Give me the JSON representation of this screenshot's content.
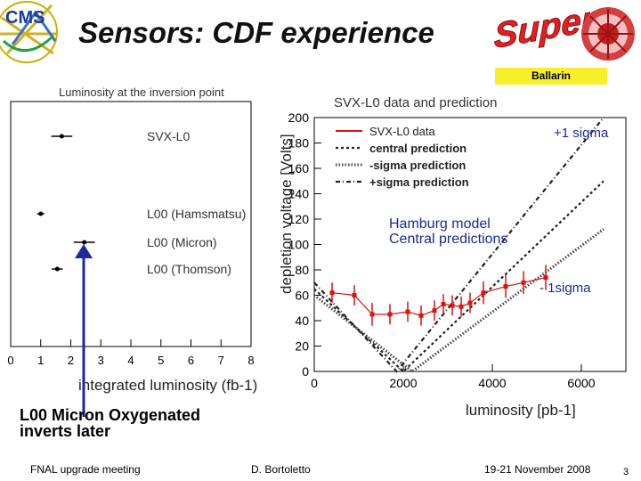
{
  "slide": {
    "title": "Sensors: CDF experience",
    "author_tag": "Ballarin",
    "logos": {
      "left": "CMS",
      "right": "Super"
    },
    "note_line1": "L00 Micron Oxygenated",
    "note_line2": "inverts later",
    "footer": {
      "left": "FNAL upgrade meeting",
      "center": "D. Bortoletto",
      "right": "19-21 November 2008",
      "page": "3"
    },
    "accent_colors": {
      "blue": "#1a2a9c",
      "red": "#e01010",
      "yellow": "#f7ef2a"
    }
  },
  "chart_data": [
    {
      "type": "scatter",
      "title": "Luminosity at the inversion point",
      "xlabel": "integrated luminosity (fb-1)",
      "xlim": [
        0,
        8
      ],
      "xticks": [
        "0",
        "1",
        "2",
        "3",
        "4",
        "5",
        "6",
        "7",
        "8"
      ],
      "points": [
        {
          "label": "SVX-L0",
          "x": 1.7,
          "xerr": 0.35
        },
        {
          "label": "L00 (Hamsmatsu)",
          "x": 1.0,
          "xerr": 0.12
        },
        {
          "label": "L00 (Micron)",
          "x": 2.45,
          "xerr": 0.35
        },
        {
          "label": "L00 (Thomson)",
          "x": 1.55,
          "xerr": 0.18
        }
      ]
    },
    {
      "type": "line",
      "title": "SVX-L0 data and prediction",
      "xlabel": "luminosity [pb-1]",
      "ylabel": "depletion voltage [Volts]",
      "xlim": [
        0,
        7000
      ],
      "ylim": [
        0,
        200
      ],
      "xticks": [
        "0",
        "2000",
        "4000",
        "6000"
      ],
      "yticks": [
        "0",
        "20",
        "40",
        "60",
        "80",
        "100",
        "120",
        "140",
        "160",
        "180",
        "200"
      ],
      "legend": [
        "SVX-L0 data",
        "central prediction",
        "-sigma prediction",
        "+sigma prediction"
      ],
      "annotations": [
        "+1 sigma",
        "Hamburg model",
        "Central predictions",
        "- 1sigma"
      ],
      "series": [
        {
          "name": "SVX-L0 data",
          "x": [
            400,
            900,
            1300,
            1700,
            2100,
            2400,
            2700,
            2900,
            3100,
            3300,
            3500,
            3800,
            4300,
            4700,
            5200
          ],
          "y": [
            62,
            60,
            45,
            45,
            47,
            44,
            48,
            53,
            52,
            51,
            54,
            62,
            67,
            70,
            74
          ],
          "yerr": [
            8,
            8,
            9,
            8,
            8,
            8,
            8,
            8,
            8,
            8,
            8,
            9,
            9,
            9,
            10
          ]
        },
        {
          "name": "central prediction",
          "x": [
            0,
            2000,
            6500
          ],
          "y": [
            65,
            0,
            150
          ]
        },
        {
          "name": "-sigma prediction",
          "x": [
            0,
            2200,
            6500
          ],
          "y": [
            60,
            0,
            112
          ]
        },
        {
          "name": "+sigma prediction",
          "x": [
            0,
            1850,
            6500
          ],
          "y": [
            70,
            0,
            200
          ]
        }
      ]
    }
  ]
}
